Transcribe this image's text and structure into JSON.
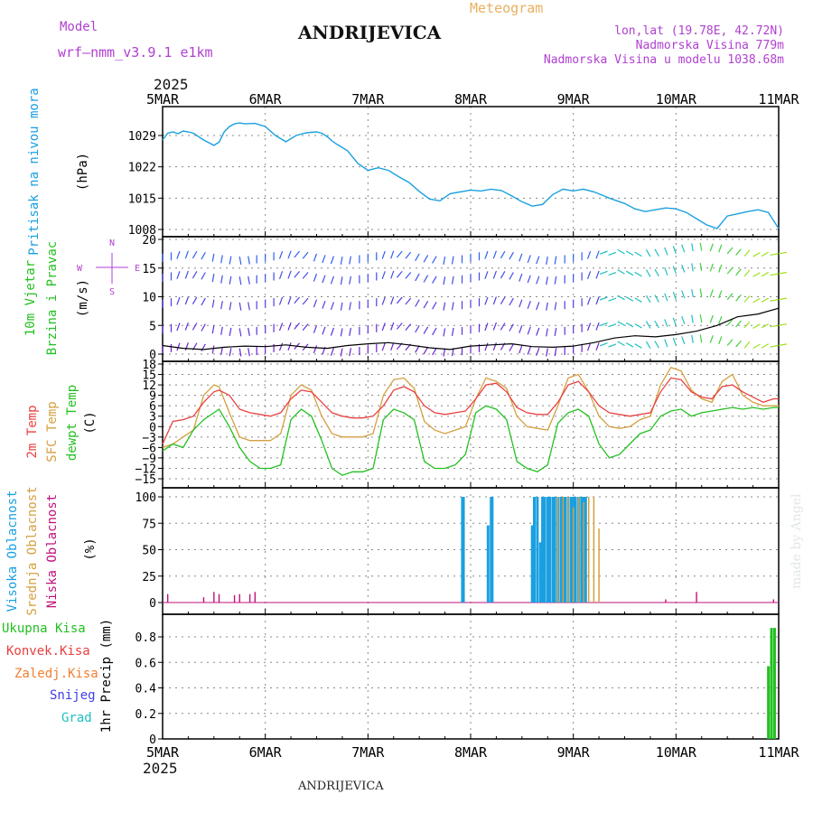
{
  "header": {
    "model_label": "Model",
    "model_value": "wrf—nmm_v3.9.1 e1km",
    "station": "ANDRIJEVICA",
    "meteogram_label": "Meteogram",
    "lonlat": "lon,lat (19.78E, 42.72N)",
    "elevation": "Nadmorska Visina 779m",
    "model_elevation": "Nadmorska Visina u modelu 1038.68m",
    "year": "2025",
    "footer_station": "ANDRIJEVICA",
    "credit": "made by Angel"
  },
  "colors": {
    "pressure": "#1aa0e0",
    "temp2m": "#e84040",
    "sfc": "#d4a040",
    "dewpt": "#22c020",
    "wind_speed": "#000000",
    "high_cloud": "#1aa0e0",
    "mid_cloud": "#d4a040",
    "low_cloud": "#c0107a",
    "precip": "#22c020",
    "grid": "#888888",
    "title_purple": "#b040d0",
    "meteogram_orange": "#e8b060"
  },
  "chart_data": [
    {
      "type": "line",
      "panel": "pressure",
      "ylabel_lines": [
        "Pritisak na nivou mora",
        "(hPa)"
      ],
      "yticks": [
        1008,
        1015,
        1022,
        1029
      ],
      "ylim": [
        1008,
        1032
      ],
      "x_days": [
        0,
        0.05,
        0.1,
        0.15,
        0.2,
        0.25,
        0.3,
        0.4,
        0.5,
        0.55,
        0.6,
        0.65,
        0.7,
        0.75,
        0.8,
        0.9,
        1.0,
        1.1,
        1.2,
        1.3,
        1.4,
        1.5,
        1.55,
        1.6,
        1.65,
        1.7,
        1.8,
        1.9,
        2.0,
        2.1,
        2.2,
        2.3,
        2.4,
        2.5,
        2.6,
        2.7,
        2.8,
        2.9,
        3.0,
        3.1,
        3.2,
        3.3,
        3.4,
        3.5,
        3.6,
        3.7,
        3.8,
        3.9,
        4.0,
        4.1,
        4.2,
        4.3,
        4.35,
        4.4,
        4.5,
        4.6,
        4.7,
        4.8,
        4.9,
        5.0,
        5.1,
        5.2,
        5.3,
        5.4,
        5.5,
        5.6,
        5.7,
        5.8,
        5.9,
        6.0
      ],
      "values": [
        1028.0,
        1029.5,
        1029.8,
        1029.4,
        1030.0,
        1029.8,
        1029.5,
        1028.0,
        1026.8,
        1027.5,
        1029.8,
        1031.0,
        1031.6,
        1031.8,
        1031.6,
        1031.7,
        1031.0,
        1029.0,
        1027.6,
        1029.0,
        1029.6,
        1029.8,
        1029.5,
        1028.8,
        1027.8,
        1027.0,
        1025.6,
        1022.8,
        1021.2,
        1021.8,
        1021.2,
        1019.8,
        1018.5,
        1016.5,
        1014.8,
        1014.4,
        1016.0,
        1016.4,
        1016.8,
        1016.6,
        1017.0,
        1016.7,
        1015.5,
        1014.2,
        1013.2,
        1013.6,
        1015.8,
        1017.0,
        1016.6,
        1017.0,
        1016.4,
        1015.5,
        1015.0,
        1014.6,
        1013.8,
        1012.6,
        1012.0,
        1012.4,
        1012.8,
        1012.6,
        1011.8,
        1010.4,
        1009.0,
        1008.2,
        1011.0,
        1011.5,
        1012.0,
        1012.4,
        1011.8,
        1008.2
      ]
    },
    {
      "type": "line",
      "panel": "wind",
      "ylabel_lines": [
        "10m Vjetar",
        "Brzina i Pravac",
        "(m/s)"
      ],
      "compass_labels": [
        "N",
        "W",
        "E",
        "S"
      ],
      "yticks": [
        0,
        5,
        10,
        15,
        20
      ],
      "ylim": [
        0,
        20
      ],
      "x_days": [
        0,
        0.2,
        0.4,
        0.6,
        0.8,
        1.0,
        1.2,
        1.4,
        1.6,
        1.8,
        2.0,
        2.2,
        2.4,
        2.6,
        2.8,
        3.0,
        3.2,
        3.4,
        3.6,
        3.8,
        4.0,
        4.2,
        4.4,
        4.6,
        4.8,
        5.0,
        5.2,
        5.4,
        5.6,
        5.8,
        6.0
      ],
      "speed": [
        1.5,
        1.0,
        0.8,
        1.2,
        1.4,
        1.3,
        1.6,
        1.2,
        1.0,
        1.5,
        1.8,
        2.0,
        1.6,
        1.1,
        0.8,
        1.4,
        1.6,
        1.8,
        1.3,
        1.2,
        1.4,
        2.0,
        2.8,
        3.2,
        3.0,
        3.4,
        4.0,
        5.0,
        6.5,
        7.0,
        8.0
      ],
      "barb_rows": [
        1.5,
        5,
        9.5,
        14,
        17.5
      ],
      "direction_deg": [
        180,
        200,
        210,
        190,
        170,
        180,
        200,
        220,
        200,
        190,
        180,
        200,
        220,
        210,
        190,
        180,
        200,
        210,
        200,
        190,
        180,
        200,
        250,
        300,
        330,
        340,
        350,
        20,
        40,
        60,
        80
      ]
    },
    {
      "type": "line",
      "panel": "temperature",
      "ylabel_lines": [
        "2m Temp",
        "SFC Temp",
        "dewpt Temp",
        "(C)"
      ],
      "yticks": [
        -15,
        -12,
        -9,
        -6,
        -3,
        0,
        3,
        6,
        9,
        12,
        15,
        18
      ],
      "ylim": [
        -16,
        18
      ],
      "x_days": [
        0,
        0.1,
        0.2,
        0.3,
        0.4,
        0.5,
        0.55,
        0.65,
        0.75,
        0.85,
        0.95,
        1.05,
        1.15,
        1.25,
        1.35,
        1.45,
        1.55,
        1.65,
        1.75,
        1.85,
        1.95,
        2.05,
        2.15,
        2.25,
        2.35,
        2.45,
        2.55,
        2.65,
        2.75,
        2.85,
        2.95,
        3.05,
        3.15,
        3.25,
        3.35,
        3.45,
        3.55,
        3.65,
        3.75,
        3.85,
        3.95,
        4.05,
        4.15,
        4.25,
        4.35,
        4.45,
        4.55,
        4.65,
        4.75,
        4.85,
        4.95,
        5.05,
        5.15,
        5.25,
        5.35,
        5.45,
        5.55,
        5.65,
        5.75,
        5.85,
        5.95,
        6.0
      ],
      "temp2m": [
        -5,
        1.5,
        2.0,
        3.0,
        7.0,
        10.0,
        10.5,
        9.0,
        5.0,
        4.0,
        3.5,
        3.0,
        4.0,
        8.0,
        10.5,
        10.0,
        7.0,
        4.0,
        3.0,
        2.5,
        2.5,
        3.0,
        6.0,
        10.5,
        11.5,
        10.0,
        6.0,
        4.0,
        3.5,
        4.0,
        4.5,
        8.0,
        12.0,
        12.5,
        10.0,
        5.5,
        4.0,
        3.5,
        3.5,
        7.0,
        12.0,
        13.0,
        10.0,
        6.0,
        4.0,
        3.5,
        3.0,
        3.5,
        4.0,
        10.0,
        14.0,
        13.5,
        10.0,
        8.5,
        8.0,
        11.5,
        12.0,
        10.0,
        8.5,
        7.0,
        8.0,
        8.0
      ],
      "sfc": [
        -6,
        -5.0,
        -3.0,
        -1.0,
        9.0,
        12.0,
        11.5,
        4.0,
        -3.0,
        -4.0,
        -4.0,
        -4.0,
        -2.0,
        9.0,
        12.0,
        10.5,
        3.0,
        -2.0,
        -3.0,
        -3.0,
        -3.0,
        -2.0,
        9.0,
        13.5,
        14.0,
        11.0,
        1.5,
        -1.0,
        -2.0,
        -1.0,
        0.0,
        8.0,
        14.0,
        13.0,
        11.0,
        3.0,
        0.0,
        -0.5,
        -1.0,
        6.0,
        14.0,
        15.0,
        10.0,
        3.0,
        0.0,
        -0.5,
        0.0,
        2.0,
        3.0,
        12.0,
        17.0,
        16.0,
        10.5,
        8.0,
        7.0,
        13.0,
        15.0,
        9.0,
        7.0,
        6.0,
        6.0,
        6.0
      ],
      "dewpt": [
        -7,
        -5.0,
        -6.0,
        -1.0,
        2.0,
        4.0,
        5.0,
        0.0,
        -6.0,
        -10.0,
        -12.0,
        -12.0,
        -11.0,
        2.0,
        5.0,
        3.0,
        -4.0,
        -12.0,
        -14.0,
        -13.0,
        -13.0,
        -12.0,
        2.0,
        5.0,
        4.0,
        2.0,
        -10.0,
        -12.0,
        -12.0,
        -11.0,
        -8.0,
        4.0,
        6.0,
        5.0,
        2.0,
        -10.0,
        -12.0,
        -13.0,
        -11.0,
        1.0,
        4.0,
        5.0,
        3.0,
        -5.0,
        -9.0,
        -8.0,
        -5.0,
        -2.0,
        -1.0,
        3.0,
        4.5,
        5.0,
        3.0,
        4.0,
        4.5,
        5.0,
        5.5,
        5.0,
        5.5,
        5.0,
        5.5,
        5.5
      ]
    },
    {
      "type": "bar",
      "panel": "cloud",
      "ylabel_lines": [
        "Visoka Oblacnost",
        "Srednja Oblacnost",
        "Niska Oblacnost",
        "(%)"
      ],
      "yticks": [
        0,
        25,
        50,
        75,
        100
      ],
      "ylim": [
        0,
        100
      ],
      "high_x_days": [
        2.92,
        2.93,
        3.17,
        3.2,
        3.21,
        3.6,
        3.62,
        3.65,
        3.68,
        3.7,
        3.72,
        3.75,
        3.77,
        3.8,
        3.82,
        3.85,
        3.88,
        3.9,
        3.92,
        3.95,
        3.98,
        4.0,
        4.02,
        4.05,
        4.08,
        4.1,
        4.12
      ],
      "high_values": [
        100,
        100,
        73,
        100,
        100,
        73,
        100,
        100,
        57,
        100,
        100,
        100,
        100,
        100,
        100,
        100,
        100,
        100,
        100,
        100,
        100,
        100,
        100,
        100,
        100,
        100,
        100
      ],
      "mid_x_days": [
        3.85,
        3.9,
        3.95,
        4.0,
        4.05,
        4.1,
        4.15,
        4.2,
        4.25
      ],
      "mid_values": [
        100,
        100,
        100,
        90,
        100,
        95,
        100,
        100,
        70
      ],
      "low_x_days": [
        0.05,
        0.4,
        0.5,
        0.55,
        0.7,
        0.75,
        0.85,
        0.9,
        4.9,
        5.2,
        5.95
      ],
      "low_values": [
        8,
        5,
        10,
        8,
        7,
        8,
        8,
        10,
        3,
        10,
        3
      ]
    },
    {
      "type": "bar",
      "panel": "precip",
      "ylabel_lines": [
        "1hr Precip (mm)"
      ],
      "legend": [
        "Ukupna Kisa",
        "Konvek.Kisa",
        "Zaledj.Kisa",
        "Snijeg",
        "Grad"
      ],
      "legend_colors": [
        "#22c020",
        "#e84040",
        "#f08030",
        "#4040e0",
        "#20c0c0"
      ],
      "yticks": [
        0,
        0.2,
        0.4,
        0.6,
        0.8
      ],
      "ylim": [
        0,
        0.9
      ],
      "x_days": [
        5.9,
        5.93,
        5.96
      ],
      "values": [
        0.57,
        0.87,
        0.87
      ]
    }
  ],
  "time_axis": {
    "labels": [
      "5MAR",
      "6MAR",
      "7MAR",
      "8MAR",
      "9MAR",
      "10MAR",
      "11MAR"
    ],
    "day_range": [
      0,
      6
    ]
  }
}
